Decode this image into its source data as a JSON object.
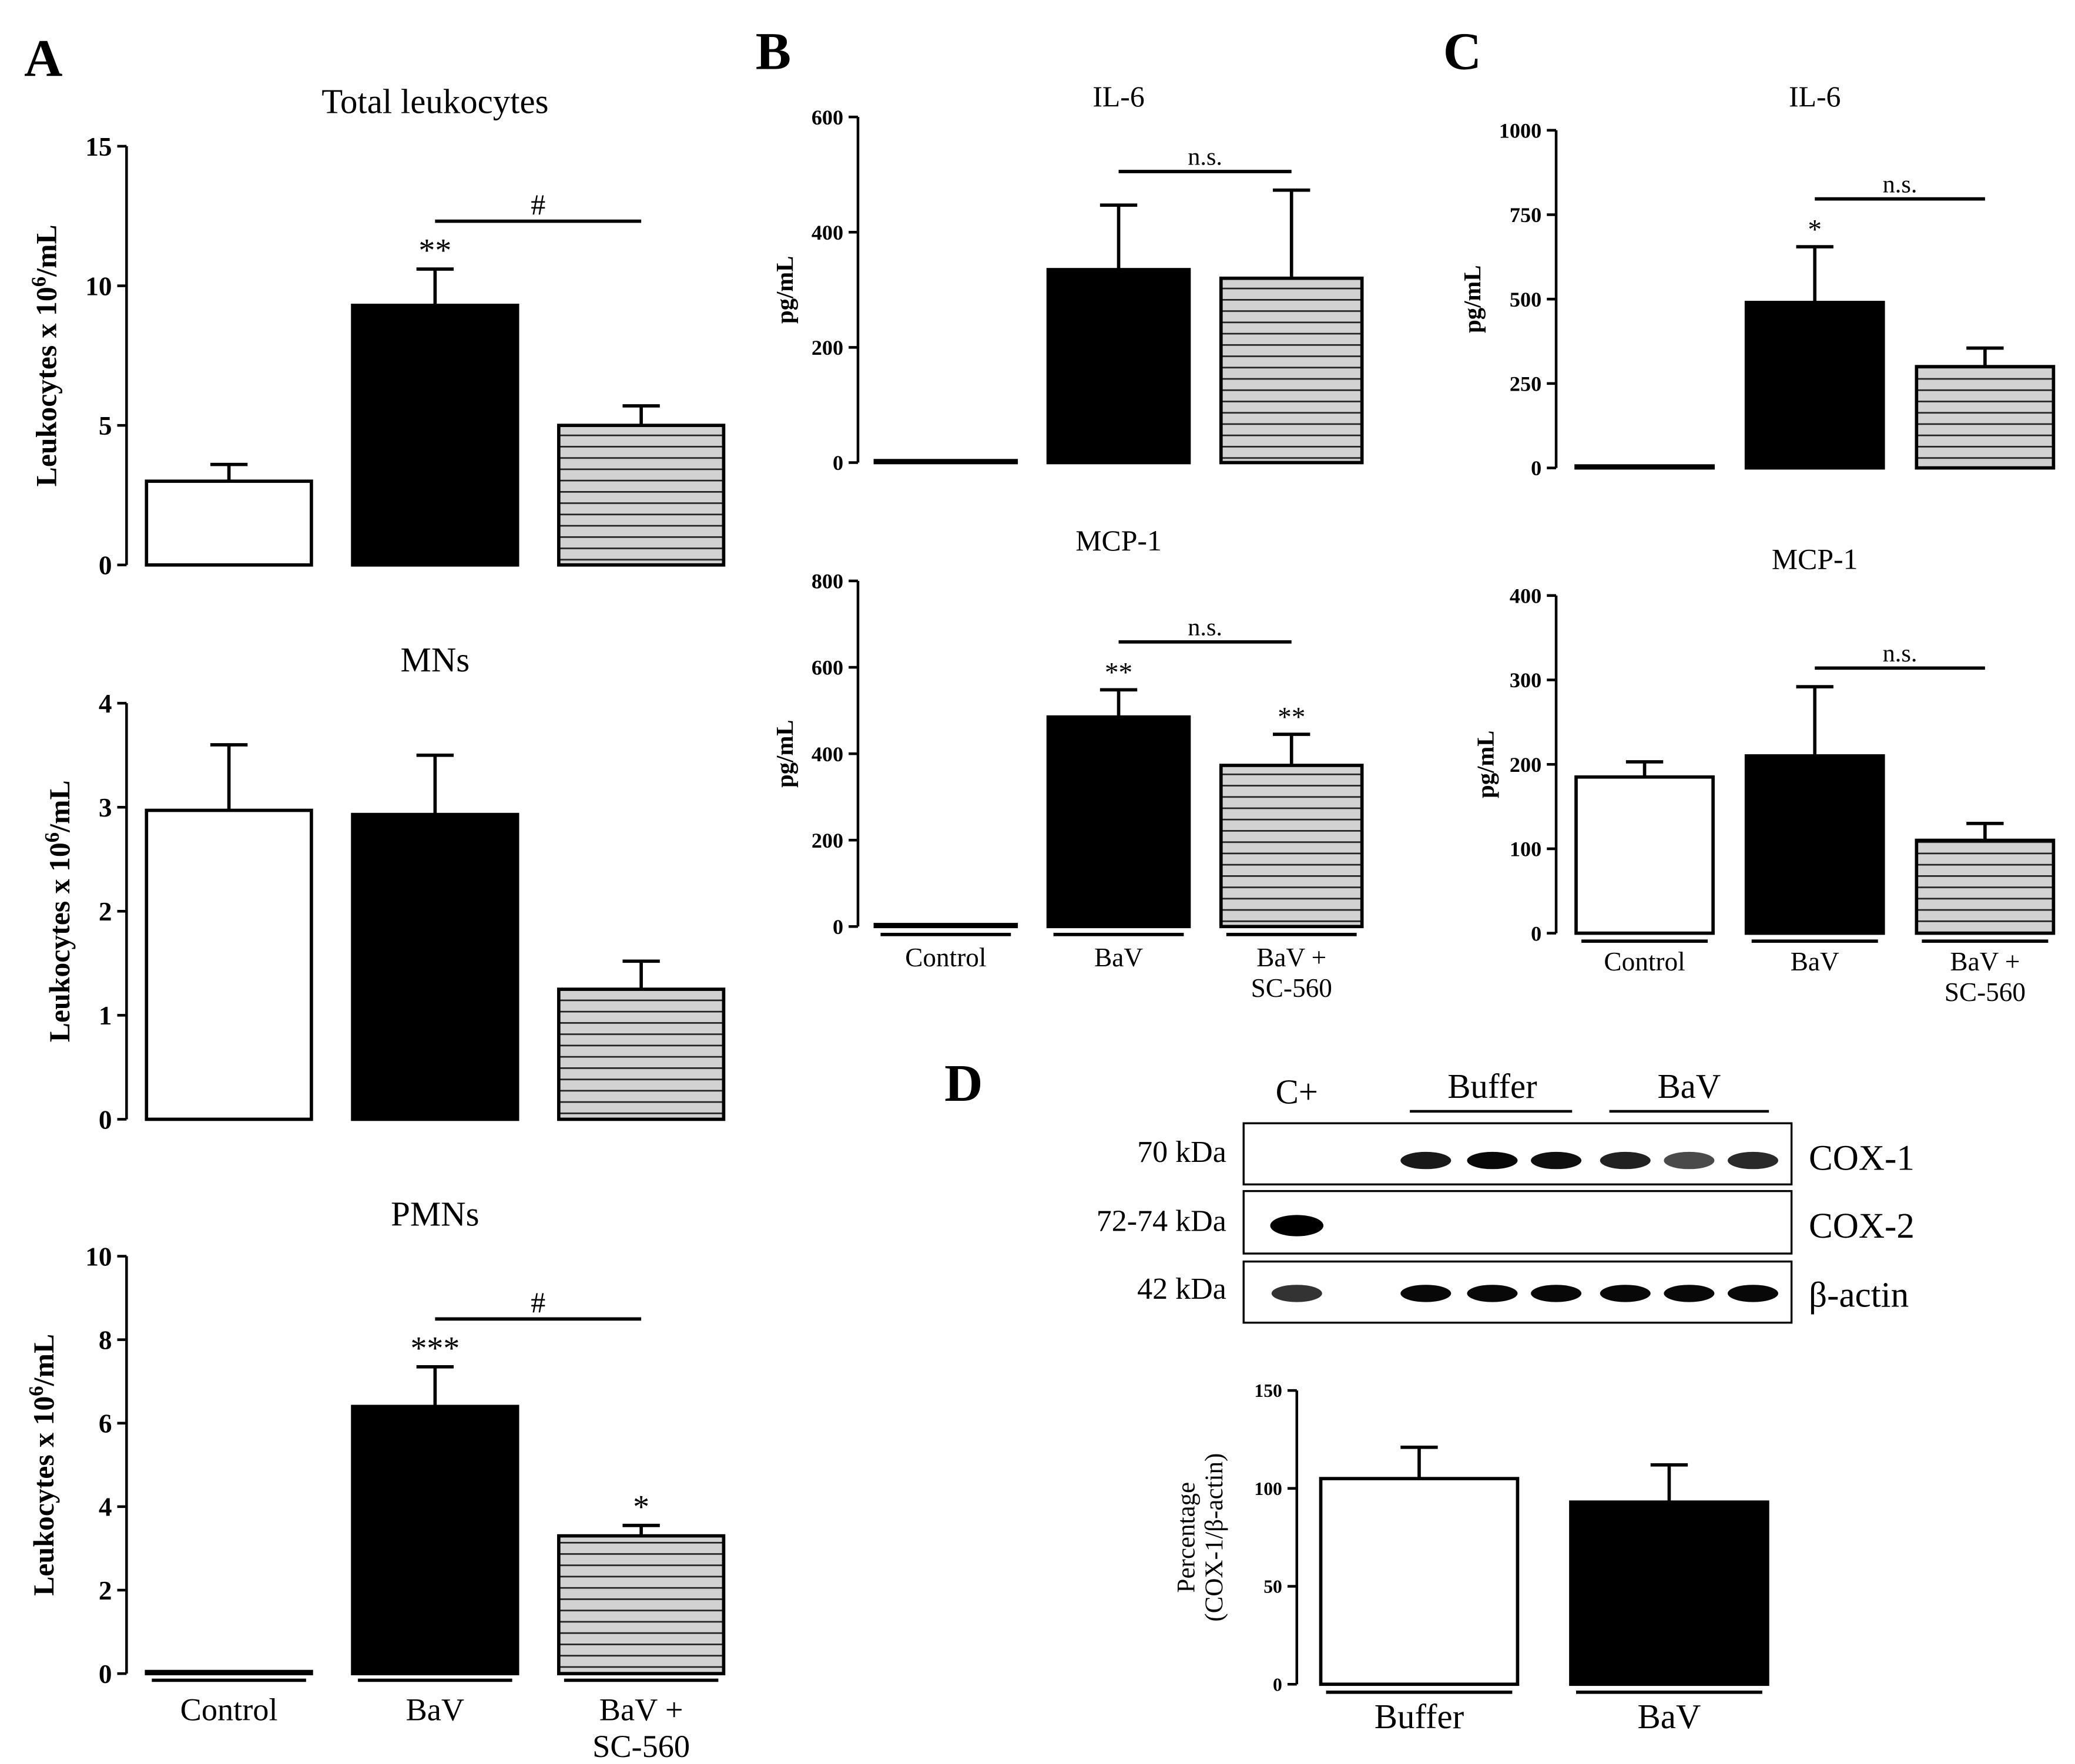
{
  "panel_letters": [
    "A",
    "B",
    "C",
    "D"
  ],
  "chart_data": [
    {
      "id": "A1",
      "panel": "A",
      "type": "bar",
      "title": "Total leukocytes",
      "ylabel": "Leukocytes x 10^6/mL",
      "ylabel_main": "Leukocytes x 10",
      "ylabel_sup": "6",
      "ylabel_tail": "/mL",
      "ylim": [
        0,
        15
      ],
      "yticks": [
        "0",
        "5",
        "10",
        "15"
      ],
      "categories": [
        "Control",
        "BaV",
        "BaV + SC-560"
      ],
      "values": [
        3.0,
        9.3,
        5.0
      ],
      "errors": [
        0.6,
        1.3,
        0.7
      ],
      "sig": [
        "",
        "**",
        ""
      ],
      "comparison": {
        "from": 1,
        "to": 2,
        "label": "#"
      },
      "show_xlabels": false
    },
    {
      "id": "A2",
      "panel": "A",
      "type": "bar",
      "title": "MNs",
      "ylabel": "Leukocytes x 10^6/mL",
      "ylabel_main": "Leukocytes x 10",
      "ylabel_sup": "6",
      "ylabel_tail": "/mL",
      "ylim": [
        0,
        4
      ],
      "yticks": [
        "0",
        "1",
        "2",
        "3",
        "4"
      ],
      "categories": [
        "Control",
        "BaV",
        "BaV + SC-560"
      ],
      "values": [
        2.97,
        2.93,
        1.25
      ],
      "errors": [
        0.63,
        0.57,
        0.27
      ],
      "sig": [
        "",
        "",
        ""
      ],
      "comparison": null,
      "show_xlabels": false
    },
    {
      "id": "A3",
      "panel": "A",
      "type": "bar",
      "title": "PMNs",
      "ylabel": "Leukocytes x 10^6/mL",
      "ylabel_main": "Leukocytes x 10",
      "ylabel_sup": "6",
      "ylabel_tail": "/mL",
      "ylim": [
        0,
        10
      ],
      "yticks": [
        "0",
        "2",
        "4",
        "6",
        "8",
        "10"
      ],
      "categories": [
        "Control",
        "BaV",
        "BaV + SC-560"
      ],
      "category_lines": [
        [
          "Control"
        ],
        [
          "BaV"
        ],
        [
          "BaV +",
          "SC-560"
        ]
      ],
      "values": [
        0.05,
        6.4,
        3.3
      ],
      "errors": [
        0,
        0.95,
        0.25
      ],
      "sig": [
        "",
        "***",
        "*"
      ],
      "comparison": {
        "from": 1,
        "to": 2,
        "label": "#"
      },
      "show_xlabels": true
    },
    {
      "id": "B1",
      "panel": "B",
      "type": "bar",
      "title": "IL-6",
      "ylabel": "pg/mL",
      "ylim": [
        0,
        600
      ],
      "yticks": [
        "0",
        "200",
        "400",
        "600"
      ],
      "categories": [
        "Control",
        "BaV",
        "BaV + SC-560"
      ],
      "values": [
        2,
        335,
        320
      ],
      "errors": [
        0,
        112,
        153
      ],
      "sig": [
        "",
        "",
        ""
      ],
      "comparison": {
        "from": 1,
        "to": 2,
        "label": "n.s."
      },
      "show_xlabels": false
    },
    {
      "id": "B2",
      "panel": "B",
      "type": "bar",
      "title": "MCP-1",
      "ylabel": "pg/mL",
      "ylim": [
        0,
        800
      ],
      "yticks": [
        "0",
        "200",
        "400",
        "600",
        "800"
      ],
      "categories": [
        "Control",
        "BaV",
        "BaV + SC-560"
      ],
      "category_lines": [
        [
          "Control"
        ],
        [
          "BaV"
        ],
        [
          "BaV +",
          "SC-560"
        ]
      ],
      "values": [
        3,
        485,
        373
      ],
      "errors": [
        0,
        63,
        72
      ],
      "sig": [
        "",
        "**",
        "**"
      ],
      "comparison": {
        "from": 1,
        "to": 2,
        "label": "n.s."
      },
      "show_xlabels": true
    },
    {
      "id": "C1",
      "panel": "C",
      "type": "bar",
      "title": "IL-6",
      "ylabel": "pg/mL",
      "ylim": [
        0,
        1000
      ],
      "yticks": [
        "0",
        "250",
        "500",
        "750",
        "1000"
      ],
      "categories": [
        "Control",
        "BaV",
        "BaV + SC-560"
      ],
      "values": [
        2,
        490,
        300
      ],
      "errors": [
        0,
        165,
        55
      ],
      "sig": [
        "",
        "*",
        ""
      ],
      "comparison": {
        "from": 1,
        "to": 2,
        "label": "n.s."
      },
      "show_xlabels": false
    },
    {
      "id": "C2",
      "panel": "C",
      "type": "bar",
      "title": "MCP-1",
      "ylabel": "pg/mL",
      "ylim": [
        0,
        400
      ],
      "yticks": [
        "0",
        "100",
        "200",
        "300",
        "400"
      ],
      "categories": [
        "Control",
        "BaV",
        "BaV + SC-560"
      ],
      "category_lines": [
        [
          "Control"
        ],
        [
          "BaV"
        ],
        [
          "BaV +",
          "SC-560"
        ]
      ],
      "values": [
        185,
        210,
        110
      ],
      "errors": [
        18,
        82,
        20
      ],
      "sig": [
        "",
        "",
        ""
      ],
      "comparison": {
        "from": 1,
        "to": 2,
        "label": "n.s."
      },
      "show_xlabels": true
    },
    {
      "id": "D1",
      "panel": "D",
      "type": "bar",
      "title": "",
      "ylabel": "Percentage (COX-1/β-actin)",
      "ylabel_lines": [
        "Percentage",
        "(COX-1/β-actin)"
      ],
      "ylim": [
        0,
        150
      ],
      "yticks": [
        "0",
        "50",
        "100",
        "150"
      ],
      "categories": [
        "Buffer",
        "BaV"
      ],
      "category_lines": [
        [
          "Buffer"
        ],
        [
          "BaV"
        ]
      ],
      "values": [
        105,
        93
      ],
      "errors": [
        16,
        19
      ],
      "sig": [
        "",
        ""
      ],
      "comparison": null,
      "show_xlabels": true
    }
  ],
  "western_blot": {
    "lane_headers": {
      "positive_control": "C+",
      "group1": "Buffer",
      "group2": "BaV"
    },
    "rows": [
      {
        "size": "70 kDa",
        "protein": "COX-1",
        "intensity": [
          0,
          0,
          0.85,
          0.95,
          0.9,
          0.8,
          0.55,
          0.75
        ]
      },
      {
        "size": "72-74 kDa",
        "protein": "COX-2",
        "intensity": [
          1.0,
          0,
          0,
          0,
          0,
          0,
          0,
          0
        ]
      },
      {
        "size": "42 kDa",
        "protein": "β-actin",
        "intensity": [
          0.7,
          0,
          0.95,
          0.95,
          0.95,
          0.95,
          0.95,
          0.95
        ]
      }
    ]
  }
}
